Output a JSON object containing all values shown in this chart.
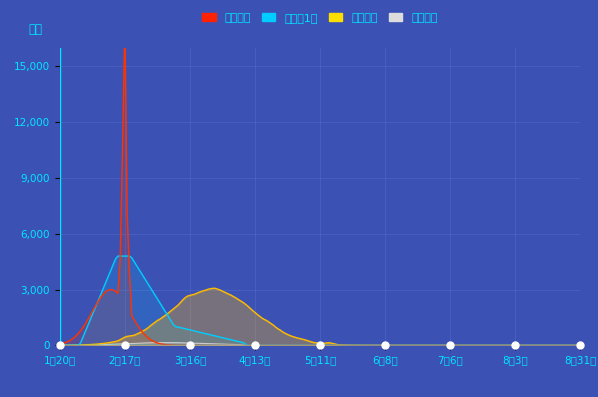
{
  "bg_color": "#3b52b4",
  "plot_bg_color": "#3b52b4",
  "grid_color": "#4d65c8",
  "text_color": "#00e8ff",
  "title_y_label": "人数",
  "ylim": [
    0,
    16000
  ],
  "yticks": [
    0,
    3000,
    6000,
    9000,
    12000,
    15000
  ],
  "x_tick_labels": [
    "1月20日",
    "2月17日",
    "3月16日",
    "4月13日",
    "5月11日",
    "6月8日",
    "7月6日",
    "8月3日",
    "8月31日"
  ],
  "legend_labels": [
    "新增確診",
    "新增留1似",
    "新增治愈",
    "新增死亡"
  ],
  "legend_colors": [
    "#ff2200",
    "#00ccff",
    "#ffdd00",
    "#dddddd"
  ],
  "series_colors": {
    "confirmed": "#ff3300",
    "suspected": "#00ccff",
    "recovered": "#ffbb00",
    "deaths": "#cccccc"
  },
  "figsize": [
    5.98,
    3.97
  ],
  "dpi": 100
}
